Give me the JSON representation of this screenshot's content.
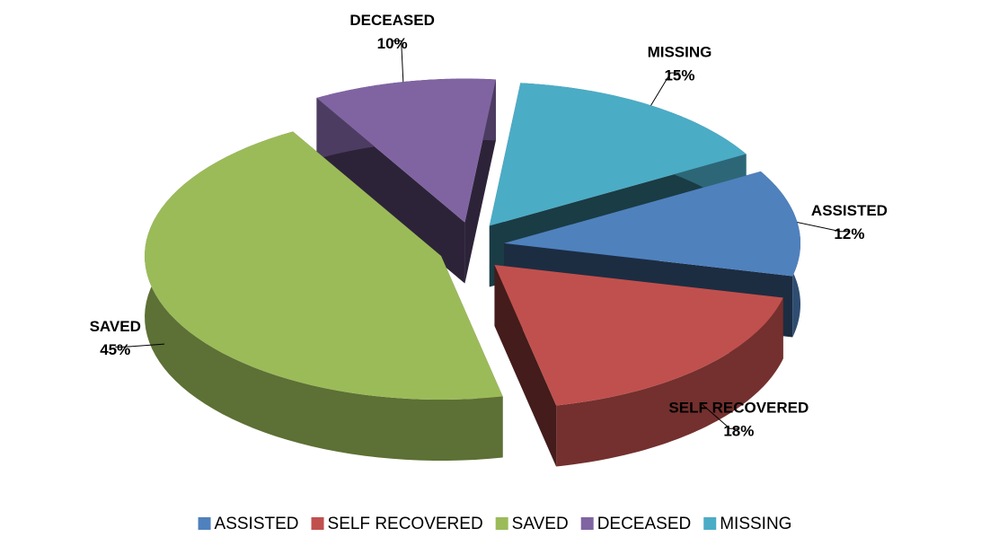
{
  "chart_data": {
    "type": "pie",
    "categories": [
      "ASSISTED",
      "SELF RECOVERED",
      "SAVED",
      "DECEASED",
      "MISSING"
    ],
    "values": [
      12,
      18,
      45,
      10,
      15
    ],
    "value_labels": [
      "12%",
      "18%",
      "45%",
      "10%",
      "15%"
    ],
    "colors": [
      "#4f81bd",
      "#c0504d",
      "#9bbb59",
      "#8064a2",
      "#4bacc6"
    ],
    "legend": "bottom"
  }
}
